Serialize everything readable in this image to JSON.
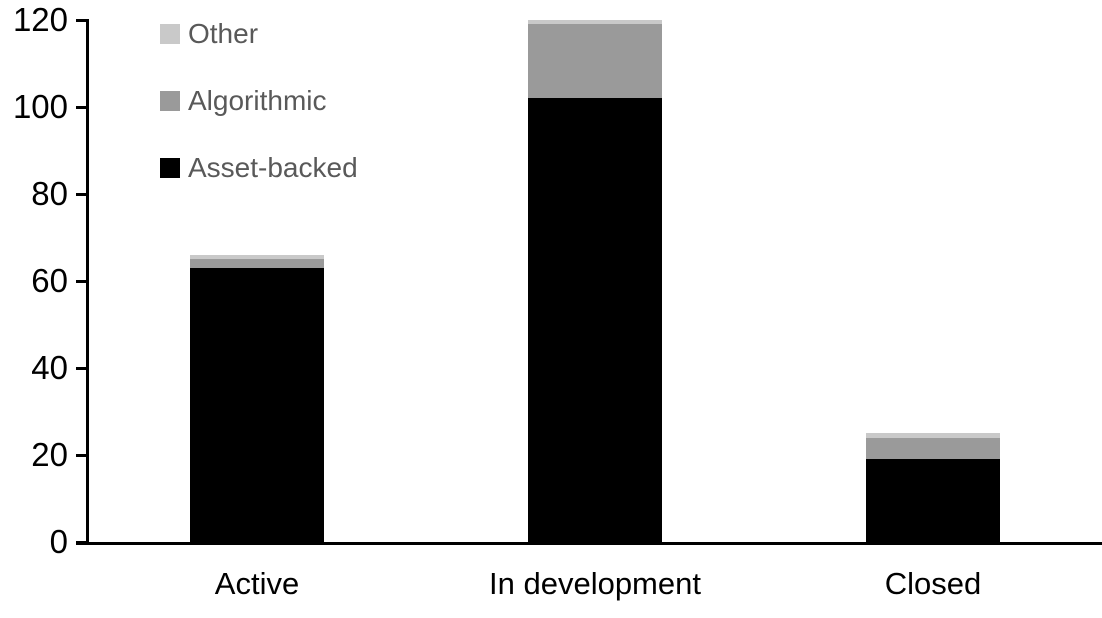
{
  "chart_data": {
    "type": "bar",
    "stacked": true,
    "categories": [
      "Active",
      "In development",
      "Closed"
    ],
    "series": [
      {
        "name": "Asset-backed",
        "color": "#000000",
        "values": [
          63,
          102,
          19
        ]
      },
      {
        "name": "Algorithmic",
        "color": "#9a9a9a",
        "values": [
          2,
          17,
          5
        ]
      },
      {
        "name": "Other",
        "color": "#c9c9c9",
        "values": [
          1,
          1,
          1
        ]
      }
    ],
    "totals": [
      66,
      120,
      25
    ],
    "legend": [
      {
        "label": "Other",
        "color": "#c9c9c9"
      },
      {
        "label": "Algorithmic",
        "color": "#9a9a9a"
      },
      {
        "label": "Asset-backed",
        "color": "#000000"
      }
    ],
    "legend_position": "top-left",
    "xlabel": "",
    "ylabel": "",
    "ylim": [
      0,
      120
    ],
    "yticks": [
      0,
      20,
      40,
      60,
      80,
      100,
      120
    ],
    "grid": false,
    "axis_color": "#000000",
    "tick_label_color": "#000000",
    "legend_text_color": "#595959",
    "background_color": "#ffffff"
  }
}
